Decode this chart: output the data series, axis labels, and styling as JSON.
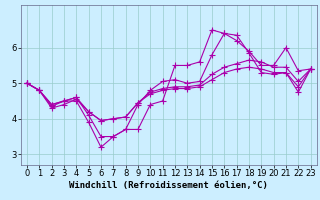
{
  "bg_color": "#cceeff",
  "line_color": "#aa00aa",
  "marker": "+",
  "markersize": 4,
  "linewidth": 0.8,
  "grid_color": "#99cccc",
  "xlabel": "Windchill (Refroidissement éolien,°C)",
  "xlabel_fontsize": 6.5,
  "tick_fontsize": 6,
  "xlim": [
    -0.5,
    23.5
  ],
  "ylim": [
    2.7,
    7.2
  ],
  "yticks": [
    3,
    4,
    5,
    6
  ],
  "xticks": [
    0,
    1,
    2,
    3,
    4,
    5,
    6,
    7,
    8,
    9,
    10,
    11,
    12,
    13,
    14,
    15,
    16,
    17,
    18,
    19,
    20,
    21,
    22,
    23
  ],
  "series": [
    [
      5.0,
      4.8,
      4.4,
      4.5,
      4.5,
      3.9,
      3.2,
      3.5,
      3.7,
      3.7,
      4.4,
      4.5,
      5.5,
      5.5,
      5.6,
      6.5,
      6.4,
      6.2,
      5.9,
      5.5,
      5.5,
      6.0,
      5.35,
      5.4
    ],
    [
      5.0,
      4.8,
      4.4,
      4.5,
      4.6,
      4.1,
      3.5,
      3.5,
      3.7,
      4.4,
      4.8,
      5.05,
      5.1,
      5.0,
      5.05,
      5.8,
      6.4,
      6.35,
      5.85,
      5.3,
      5.25,
      5.3,
      4.75,
      5.4
    ],
    [
      5.0,
      4.8,
      4.35,
      4.5,
      4.6,
      4.2,
      3.95,
      4.0,
      4.05,
      4.45,
      4.75,
      4.85,
      4.9,
      4.9,
      4.95,
      5.25,
      5.45,
      5.55,
      5.65,
      5.6,
      5.45,
      5.45,
      5.05,
      5.4
    ],
    [
      5.0,
      4.8,
      4.3,
      4.4,
      4.55,
      4.2,
      3.95,
      4.0,
      4.05,
      4.45,
      4.7,
      4.8,
      4.85,
      4.85,
      4.9,
      5.1,
      5.3,
      5.4,
      5.45,
      5.4,
      5.3,
      5.3,
      4.9,
      5.4
    ]
  ]
}
